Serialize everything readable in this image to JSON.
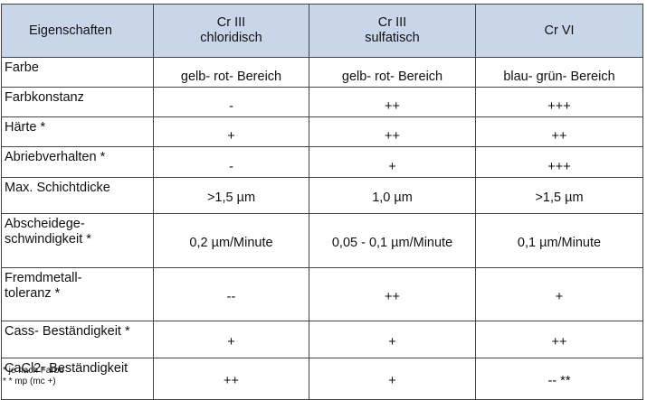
{
  "table": {
    "headers": [
      {
        "lines": [
          "Eigenschaften"
        ]
      },
      {
        "lines": [
          "Cr III",
          "chloridisch"
        ]
      },
      {
        "lines": [
          "Cr III",
          "sulfatisch"
        ]
      },
      {
        "lines": [
          "Cr VI"
        ]
      }
    ],
    "rows": [
      {
        "property": [
          "Farbe"
        ],
        "values": [
          "gelb- rot- Bereich",
          "gelb- rot- Bereich",
          "blau- grün- Bereich"
        ]
      },
      {
        "property": [
          "Farbkonstanz"
        ],
        "values": [
          "-",
          "++",
          "+++"
        ]
      },
      {
        "property": [
          "Härte *"
        ],
        "values": [
          "+",
          "++",
          "++"
        ]
      },
      {
        "property": [
          "Abriebverhalten *"
        ],
        "values": [
          "-",
          "+",
          "+++"
        ]
      },
      {
        "property": [
          "Max. Schichtdicke"
        ],
        "values": [
          ">1,5 µm",
          "1,0 µm",
          ">1,5 µm"
        ]
      },
      {
        "property": [
          "Abscheidege-",
          "schwindigkeit *"
        ],
        "values": [
          "0,2 µm/Minute",
          "0,05 - 0,1 µm/Minute",
          "0,1 µm/Minute"
        ]
      },
      {
        "property": [
          "Fremdmetall-",
          "toleranz *"
        ],
        "values": [
          "--",
          "++",
          "+"
        ]
      },
      {
        "property": [
          "Cass- Beständigkeit *"
        ],
        "values": [
          "+",
          "+",
          "++"
        ]
      },
      {
        "property": [
          "CaCl2- Beständigkeit"
        ],
        "values": [
          "++",
          "+",
          "-- **"
        ]
      }
    ]
  },
  "footnotes": [
    "* je nach Farbe",
    "* * mp (mc +)"
  ],
  "colors": {
    "header_bg": "#c9d6ea",
    "border": "#444444",
    "text": "#111111"
  }
}
